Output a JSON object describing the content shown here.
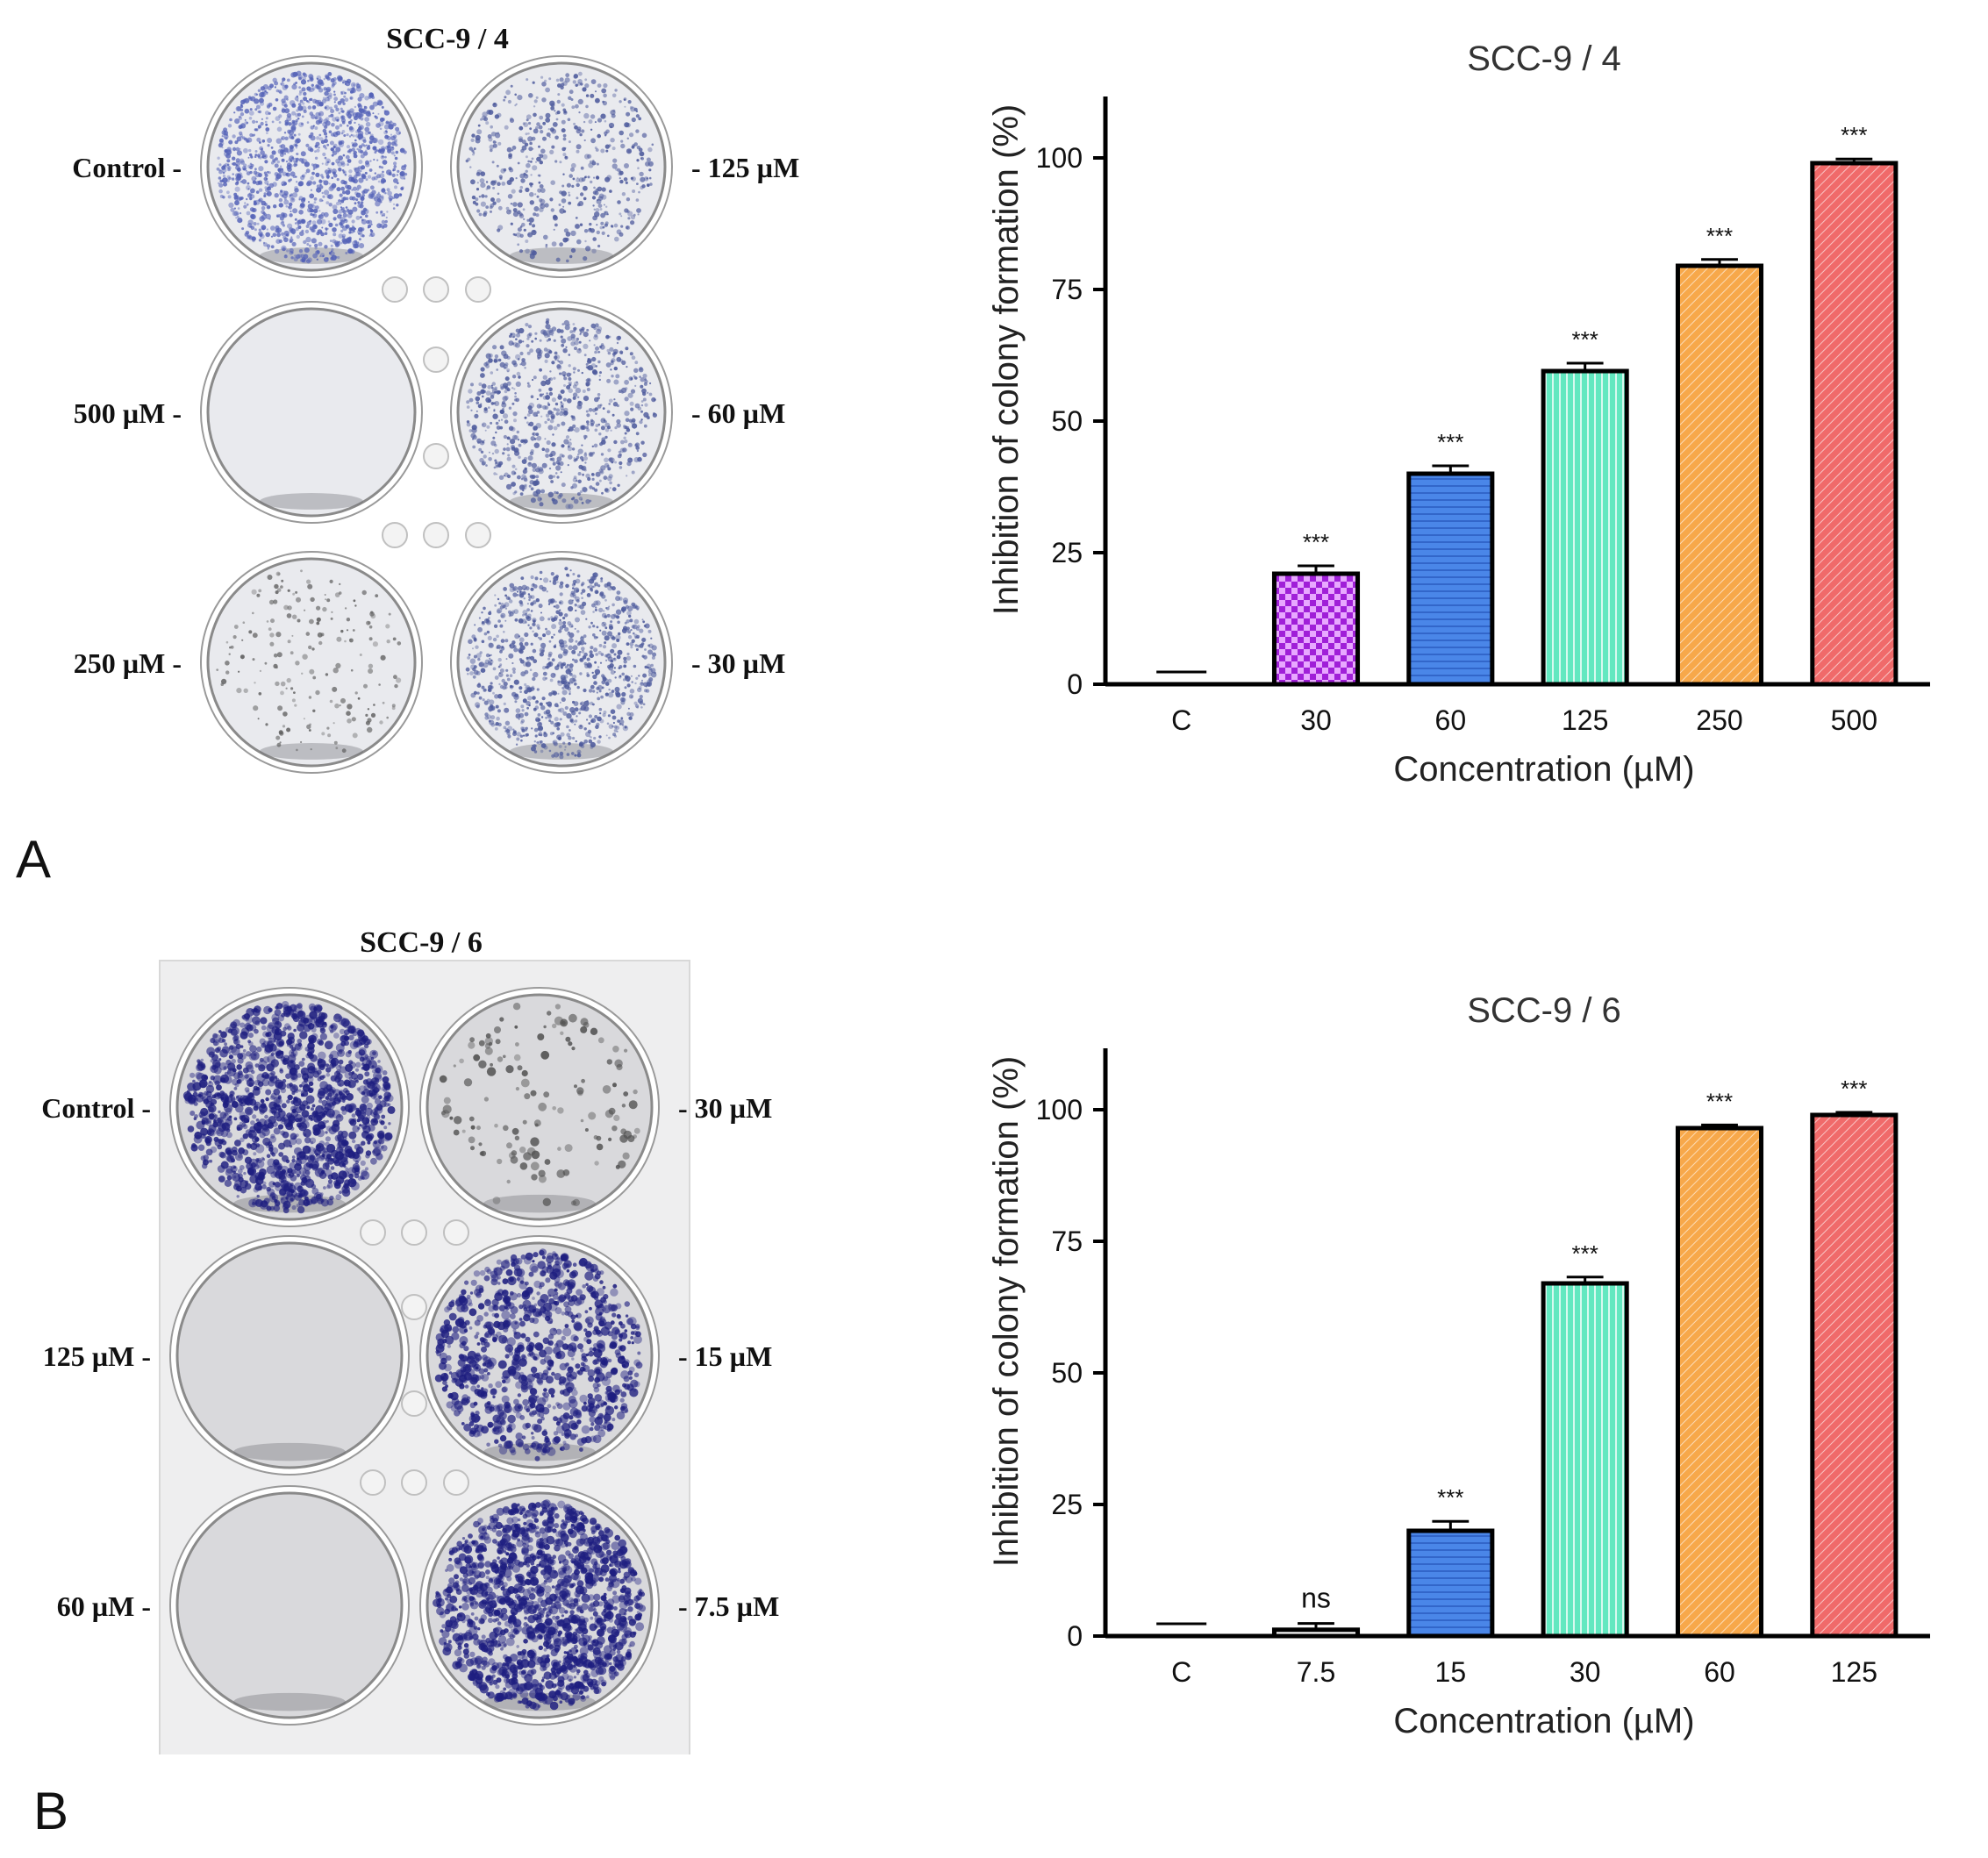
{
  "panels": [
    {
      "letter": "A",
      "plate": {
        "title": "SCC-9 / 4",
        "wells": [
          {
            "label": "Control -",
            "side": "left",
            "density": 0.85,
            "stain": "#5563b8"
          },
          {
            "label": "- 125 µM",
            "side": "right",
            "density": 0.35,
            "stain": "#4d5a9c"
          },
          {
            "label": "500 µM -",
            "side": "left",
            "density": 0.0,
            "stain": "#707070"
          },
          {
            "label": "- 60 µM",
            "side": "right",
            "density": 0.5,
            "stain": "#4d5a9c"
          },
          {
            "label": "250 µM -",
            "side": "left",
            "density": 0.12,
            "stain": "#606060"
          },
          {
            "label": "- 30 µM",
            "side": "right",
            "density": 0.6,
            "stain": "#4d5a9c"
          }
        ]
      },
      "chart_data": {
        "type": "bar",
        "title": "SCC-9 / 4",
        "xlabel": "Concentration (µM)",
        "ylabel": "Inhibition of colony formation (%)",
        "ylim": [
          0,
          110
        ],
        "yticks": [
          "0",
          "25",
          "50",
          "75",
          "100"
        ],
        "categories": [
          "C",
          "30",
          "60",
          "125",
          "250",
          "500"
        ],
        "values": [
          0,
          21,
          40,
          59.5,
          79.5,
          99
        ],
        "errors": [
          0,
          1.5,
          1.5,
          1.5,
          1.2,
          0.8
        ],
        "significance": [
          "",
          "***",
          "***",
          "***",
          "***",
          "***"
        ],
        "colors": [
          "#ffffff",
          "#a020d8",
          "#4a86e8",
          "#62e8c0",
          "#f7a84a",
          "#f06a6a"
        ],
        "patterns": [
          "none",
          "checker",
          "hlines",
          "vlines",
          "diag",
          "diag"
        ],
        "grid": false
      }
    },
    {
      "letter": "B",
      "plate": {
        "title": "SCC-9 / 6",
        "wells": [
          {
            "label": "Control -",
            "side": "left",
            "density": 0.9,
            "stain": "#1e1e80"
          },
          {
            "label": "- 30 µM",
            "side": "right",
            "density": 0.1,
            "stain": "#505050"
          },
          {
            "label": "125 µM -",
            "side": "left",
            "density": 0.0,
            "stain": "#707070"
          },
          {
            "label": "- 15 µM",
            "side": "right",
            "density": 0.65,
            "stain": "#1e1e80"
          },
          {
            "label": "60 µM -",
            "side": "left",
            "density": 0.0,
            "stain": "#707070"
          },
          {
            "label": "- 7.5 µM",
            "side": "right",
            "density": 1.0,
            "stain": "#1e1e80"
          }
        ]
      },
      "chart_data": {
        "type": "bar",
        "title": "SCC-9 / 6",
        "xlabel": "Concentration (µM)",
        "ylabel": "Inhibition of colony formation (%)",
        "ylim": [
          0,
          110
        ],
        "yticks": [
          "0",
          "25",
          "50",
          "75",
          "100"
        ],
        "categories": [
          "C",
          "7.5",
          "15",
          "30",
          "60",
          "125"
        ],
        "values": [
          0,
          1.2,
          20,
          67,
          96.5,
          99
        ],
        "errors": [
          0,
          1.2,
          1.8,
          1.2,
          0.6,
          0.5
        ],
        "significance": [
          "",
          "ns",
          "***",
          "***",
          "***",
          "***"
        ],
        "colors": [
          "#ffffff",
          "#ffffff",
          "#4a86e8",
          "#62e8c0",
          "#f7a84a",
          "#f06a6a"
        ],
        "patterns": [
          "none",
          "none",
          "hlines",
          "vlines",
          "diag",
          "diag"
        ],
        "grid": false
      }
    }
  ]
}
